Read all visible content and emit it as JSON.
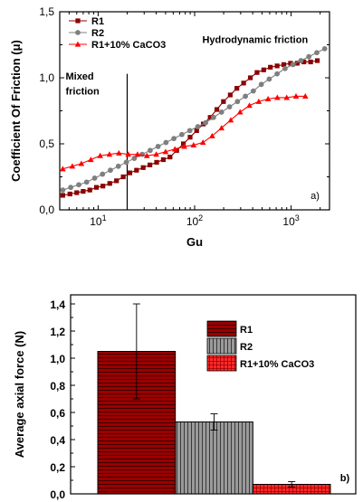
{
  "chart_data": [
    {
      "type": "line",
      "xscale": "log",
      "xlabel": "Gu",
      "ylabel": "Coefficient Of Friction (μ)",
      "xlim": [
        4,
        2500
      ],
      "ylim": [
        0,
        1.5
      ],
      "xticks": [
        {
          "base": "10",
          "exp": "1",
          "value": 10
        },
        {
          "base": "10",
          "exp": "2",
          "value": 100
        },
        {
          "base": "10",
          "exp": "3",
          "value": 1000
        }
      ],
      "yticks": [
        {
          "label": "0,0",
          "value": 0
        },
        {
          "label": "0,5",
          "value": 0.5
        },
        {
          "label": "1,0",
          "value": 1.0
        },
        {
          "label": "1,5",
          "value": 1.5
        }
      ],
      "legend_position": "top-left",
      "panel_label": "a)",
      "vline_x": 20,
      "annotations": [
        {
          "text": "Mixed",
          "x": 4.6,
          "y": 0.985
        },
        {
          "text": "friction",
          "x": 4.6,
          "y": 0.875
        },
        {
          "text": "Hydrodynamic friction",
          "x": 120,
          "y": 1.265
        }
      ],
      "series": [
        {
          "name": "R1",
          "color": "#8b0000",
          "marker": "square",
          "x": [
            4.3,
            5.1,
            6,
            7,
            8.2,
            9.6,
            11.2,
            13.2,
            15.5,
            18.2,
            21.3,
            25,
            29.3,
            34.4,
            40.4,
            47.4,
            55.6,
            65.2,
            76.5,
            89.8,
            105,
            123,
            145,
            170,
            199,
            234,
            274,
            322,
            378,
            443,
            520,
            610,
            716,
            840,
            986,
            1157,
            1357,
            1593,
            1870
          ],
          "y": [
            0.11,
            0.12,
            0.13,
            0.14,
            0.15,
            0.17,
            0.18,
            0.2,
            0.22,
            0.25,
            0.28,
            0.3,
            0.32,
            0.34,
            0.36,
            0.38,
            0.4,
            0.45,
            0.5,
            0.55,
            0.6,
            0.65,
            0.7,
            0.76,
            0.82,
            0.87,
            0.92,
            0.96,
            1.0,
            1.04,
            1.06,
            1.08,
            1.09,
            1.1,
            1.11,
            1.11,
            1.12,
            1.12,
            1.13
          ]
        },
        {
          "name": "R2",
          "color": "#7f7f7f",
          "marker": "circle",
          "x": [
            4.3,
            5.2,
            6.3,
            7.6,
            9.2,
            11.1,
            13.4,
            16.2,
            19.6,
            23.7,
            28.6,
            34.6,
            41.8,
            50.5,
            61,
            73.7,
            89.1,
            108,
            130,
            157,
            190,
            230,
            278,
            336,
            406,
            491,
            593,
            716,
            866,
            1046,
            1264,
            1527,
            1846,
            2230
          ],
          "y": [
            0.15,
            0.17,
            0.19,
            0.21,
            0.24,
            0.27,
            0.3,
            0.33,
            0.36,
            0.39,
            0.42,
            0.45,
            0.48,
            0.51,
            0.54,
            0.57,
            0.6,
            0.63,
            0.66,
            0.7,
            0.74,
            0.78,
            0.82,
            0.86,
            0.9,
            0.95,
            0.99,
            1.03,
            1.07,
            1.1,
            1.13,
            1.16,
            1.19,
            1.22
          ]
        },
        {
          "name": "R1+10% CaCO3",
          "color": "#ff0000",
          "marker": "triangle",
          "x": [
            4.3,
            5.4,
            6.7,
            8.4,
            10.5,
            13.1,
            16.4,
            20.5,
            25.6,
            32,
            40,
            50,
            62.5,
            78,
            97.5,
            122,
            152,
            190,
            237,
            296,
            370,
            462,
            577,
            720,
            900,
            1124,
            1404
          ],
          "y": [
            0.31,
            0.33,
            0.35,
            0.38,
            0.41,
            0.42,
            0.43,
            0.42,
            0.42,
            0.41,
            0.42,
            0.44,
            0.46,
            0.48,
            0.49,
            0.51,
            0.56,
            0.62,
            0.68,
            0.74,
            0.79,
            0.82,
            0.84,
            0.85,
            0.85,
            0.86,
            0.86
          ]
        }
      ]
    },
    {
      "type": "bar",
      "ylabel": "Average axial force (N)",
      "ylim": [
        0,
        1.4
      ],
      "yticks": [
        {
          "label": "0,0",
          "value": 0
        },
        {
          "label": "0,2",
          "value": 0.2
        },
        {
          "label": "0,4",
          "value": 0.4
        },
        {
          "label": "0,6",
          "value": 0.6
        },
        {
          "label": "0,8",
          "value": 0.8
        },
        {
          "label": "1,0",
          "value": 1.0
        },
        {
          "label": "1,2",
          "value": 1.2
        },
        {
          "label": "1,4",
          "value": 1.4
        }
      ],
      "legend_position": "top-right",
      "panel_label": "b)",
      "bars": [
        {
          "name": "R1",
          "value": 1.05,
          "error": 0.35,
          "color": "#9b0000",
          "pattern": "horizontal"
        },
        {
          "name": "R2",
          "value": 0.53,
          "error": 0.06,
          "color": "#9a9a9a",
          "pattern": "vertical"
        },
        {
          "name": "R1+10% CaCO3",
          "value": 0.07,
          "error": 0.02,
          "color": "#ff2a2a",
          "pattern": "grid"
        }
      ]
    }
  ]
}
